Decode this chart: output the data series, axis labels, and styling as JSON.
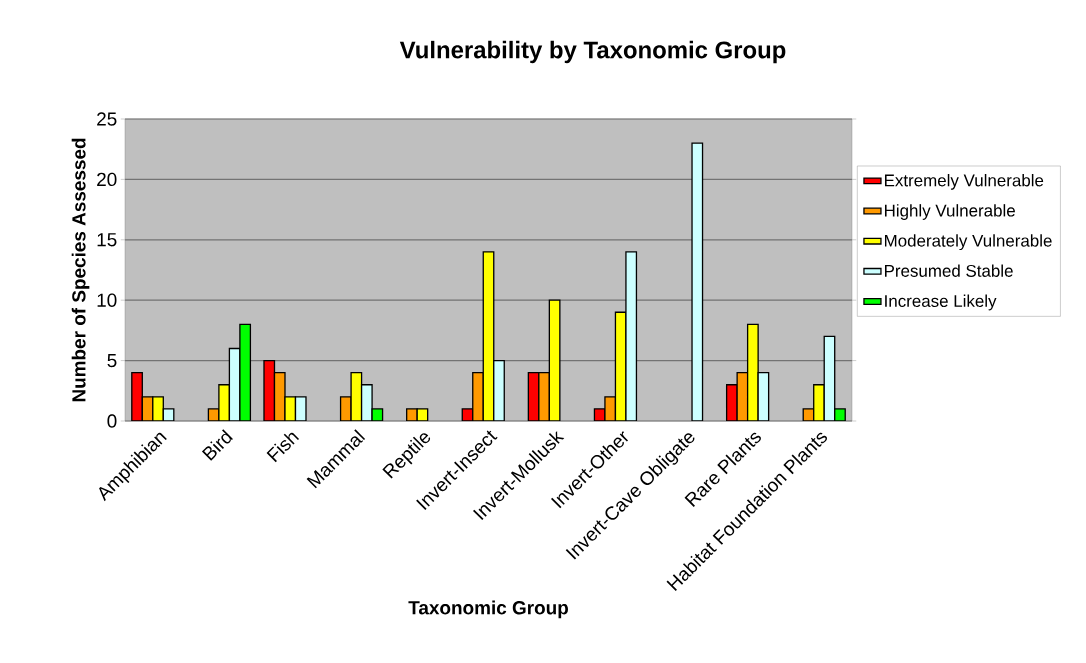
{
  "chart_data": {
    "type": "bar",
    "title": "Vulnerability by Taxonomic Group",
    "xlabel": "Taxonomic Group",
    "ylabel": "Number of Species Assessed",
    "categories": [
      "Amphibian",
      "Bird",
      "Fish",
      "Mammal",
      "Reptile",
      "Invert-Insect",
      "Invert-Mollusk",
      "Invert-Other",
      "Invert-Cave Obligate",
      "Rare Plants",
      "Habitat Foundation Plants"
    ],
    "series": [
      {
        "name": "Extremely Vulnerable",
        "color": "#ff0000",
        "values": [
          4,
          null,
          5,
          null,
          null,
          1,
          4,
          1,
          null,
          3,
          null
        ]
      },
      {
        "name": "Highly Vulnerable",
        "color": "#ff9900",
        "values": [
          2,
          1,
          4,
          2,
          1,
          4,
          4,
          2,
          null,
          4,
          1
        ]
      },
      {
        "name": "Moderately Vulnerable",
        "color": "#ffff00",
        "values": [
          2,
          3,
          2,
          4,
          1,
          14,
          10,
          9,
          null,
          8,
          3
        ]
      },
      {
        "name": "Presumed Stable",
        "color": "#ccffff",
        "values": [
          1,
          6,
          2,
          3,
          null,
          5,
          null,
          14,
          23,
          4,
          7
        ]
      },
      {
        "name": "Increase Likely",
        "color": "#00ff00",
        "values": [
          null,
          8,
          null,
          1,
          null,
          null,
          null,
          null,
          null,
          null,
          1
        ]
      }
    ],
    "ylim": [
      0,
      25
    ],
    "yticks": [
      0,
      5,
      10,
      15,
      20,
      25
    ],
    "grid": "y",
    "legend": "right"
  }
}
